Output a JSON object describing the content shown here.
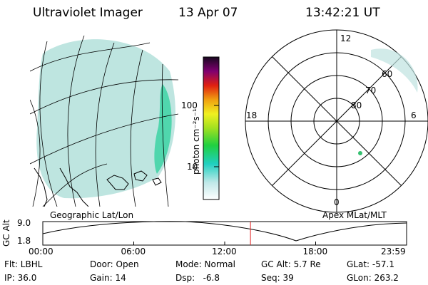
{
  "header": {
    "instrument": "Ultraviolet Imager",
    "date": "13 Apr 07",
    "time": "13:42:21 UT"
  },
  "colorbar": {
    "unit": "photon cm⁻²s⁻¹",
    "ticks": [
      "100",
      "10"
    ]
  },
  "polar": {
    "mlt_labels": [
      "12",
      "18",
      "6",
      "0"
    ],
    "lat_labels": [
      "60",
      "70",
      "80"
    ],
    "title": "Apex MLat/MLT"
  },
  "geo": {
    "title": "Geographic Lat/Lon"
  },
  "altitude_plot": {
    "ylabel": "GC Alt",
    "yticks": [
      "9.0",
      "1.8"
    ],
    "xticks": [
      "00:00",
      "06:00",
      "12:00",
      "18:00",
      "23:59"
    ],
    "current_time_hours": 13.7
  },
  "info": {
    "filter": "Flt: LBHL",
    "ip": "IP: 36.0",
    "door": "Door: Open",
    "gain": "Gain: 14",
    "mode": "Mode: Normal",
    "dsp": "Dsp:   -6.8",
    "gcalt": "GC Alt: 5.7 Re",
    "seq": "Seq: 39",
    "glat": "GLat: -57.1",
    "glon": "GLon: 263.2"
  },
  "colors": {
    "glow": "#a8dcd6",
    "bright": "#35d2a0",
    "marker": "#e02020"
  }
}
